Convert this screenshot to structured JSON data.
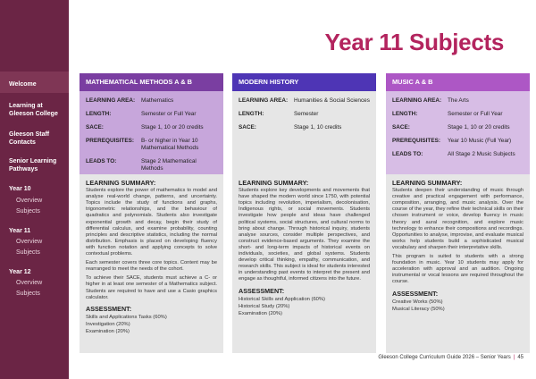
{
  "sidebar": {
    "items": [
      {
        "label": "Welcome"
      },
      {
        "label": "Learning at Gleeson College"
      },
      {
        "label": "Gleeson Staff Contacts"
      },
      {
        "label": "Senior Learning Pathways"
      },
      {
        "label": "Year 10",
        "subs": [
          "Overview",
          "Subjects"
        ]
      },
      {
        "label": "Year 11",
        "subs": [
          "Overview",
          "Subjects"
        ]
      },
      {
        "label": "Year 12",
        "subs": [
          "Overview",
          "Subjects"
        ]
      }
    ]
  },
  "page": {
    "title": "Year 11 Subjects"
  },
  "labels": {
    "learning_area": "LEARNING AREA:",
    "length": "LENGTH:",
    "sace": "SACE:",
    "prerequisites": "PREREQUISITES:",
    "leads_to": "LEADS TO:",
    "learning_summary": "LEARNING SUMMARY:",
    "assessment": "ASSESSMENT:"
  },
  "colors": {
    "sidebar": "#6b2545",
    "title": "#b3245e",
    "methods_header": "#7a3ea1",
    "methods_box": "#c7a6db",
    "history_header": "#4e35b5",
    "history_box": "#e6e6e6",
    "music_header": "#ad57c5",
    "music_box": "#d7bde5"
  },
  "columns": [
    {
      "title": "MATHEMATICAL METHODS A & B",
      "learning_area": "Mathematics",
      "length": "Semester or Full Year",
      "sace": "Stage 1, 10 or 20 credits",
      "prerequisites": "B- or higher in Year 10 Mathematical Methods",
      "leads_to": "Stage 2 Mathematical Methods",
      "summary": [
        "Students explore the power of mathematics to model and analyse real-world change, patterns, and uncertainty. Topics include the study of functions and graphs, trigonometric relationships, and the behaviour of quadratics and polynomials. Students also investigate exponential growth and decay, begin their study of differential calculus, and examine probability, counting principles and descriptive statistics, including the normal distribution. Emphasis is placed on developing fluency with function notation and applying concepts to solve contextual problems.",
        "Each semester covers three core topics. Content may be rearranged to meet the needs of the cohort.",
        "To achieve their SACE, students must achieve a C- or higher in at least one semester of a Mathematics subject. Students are required to have and use a Casio graphics calculator."
      ],
      "assessment": [
        "Skills and Applications Tasks (60%)",
        "Investigation (20%)",
        "Examination (20%)"
      ]
    },
    {
      "title": "MODERN HISTORY",
      "learning_area": "Humanities & Social Sciences",
      "length": "Semester",
      "sace": "Stage 1, 10 credits",
      "summary": [
        "Students explore key developments and movements that have shaped the modern world since 1750, with potential topics including revolution, imperialism, decolonisation, Indigenous rights, or social movements. Students investigate how people and ideas have challenged political systems, social structures, and cultural norms to bring about change. Through historical inquiry, students analyse sources, consider multiple perspectives, and construct evidence-based arguments. They examine the short- and long-term impacts of historical events on individuals, societies, and global systems. Students develop critical thinking, empathy, communication, and research skills. This subject is ideal for students interested in understanding past events to interpret the present and engage as thoughtful, informed citizens into the future."
      ],
      "assessment": [
        "Historical Skills and Application (60%)",
        "Historical Study (20%)",
        "Examination (20%)"
      ]
    },
    {
      "title": "MUSIC A & B",
      "learning_area": "The Arts",
      "length": "Semester or Full Year",
      "sace": "Stage 1, 10 or 20 credits",
      "prerequisites": "Year 10 Music (Full Year)",
      "leads_to": "All Stage 2 Music Subjects",
      "summary": [
        "Students deepen their understanding of music through creative and practical engagement with performance, composition, arranging, and music analysis. Over the course of the year, they refine their technical skills on their chosen instrument or voice, develop fluency in music theory and aural recognition, and explore music technology to enhance their compositions and recordings. Opportunities to analyse, improvise, and evaluate musical works help students build a sophisticated musical vocabulary and sharpen their interpretative skills.",
        "This program is suited to students with a strong foundation in music. Year 10 students may apply for acceleration with approval and an audition. Ongoing instrumental or vocal lessons are required throughout the course."
      ],
      "assessment": [
        "Creative Works (50%)",
        "Musical Literacy (50%)"
      ]
    }
  ],
  "footer": {
    "text": "Gleeson College Curriculum Guide 2026 – Senior Years",
    "page": "45"
  }
}
